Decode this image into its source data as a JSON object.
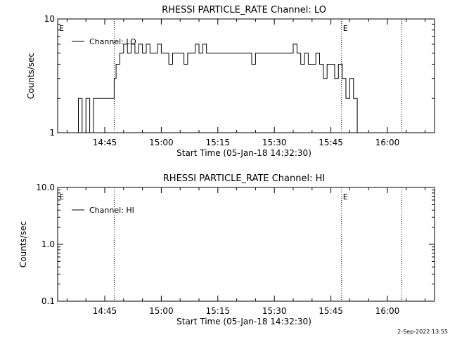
{
  "footer": {
    "date_stamp": "2-Sep-2022 13:55"
  },
  "chart_data": [
    {
      "type": "line",
      "title": "RHESSI PARTICLE_RATE Channel: LO",
      "xlabel": "Start Time (05-Jan-18 14:32:30)",
      "ylabel": "Counts/sec",
      "y_scale": "log",
      "ylim": [
        1,
        10
      ],
      "y_ticks": [
        {
          "value": 1,
          "label": "1"
        },
        {
          "value": 10,
          "label": "10"
        }
      ],
      "xlim": [
        "14:32:30",
        "16:12:30"
      ],
      "x_ticks": [
        "14:45",
        "15:00",
        "15:15",
        "15:30",
        "15:45",
        "16:00"
      ],
      "vertical_markers": [
        "14:47:30",
        "15:47:50",
        "16:03:50"
      ],
      "event_markers": [
        {
          "label": "E",
          "x": "14:32:30"
        },
        {
          "label": "E",
          "x": "15:47:50"
        }
      ],
      "grid": false,
      "legend_position": "top-left",
      "series": [
        {
          "name": "Channel: LO",
          "x": [
            "14:36:00",
            "14:37:00",
            "14:38:00",
            "14:39:00",
            "14:40:00",
            "14:41:00",
            "14:42:00",
            "14:43:00",
            "14:44:00",
            "14:45:00",
            "14:46:00",
            "14:47:00",
            "14:47:30",
            "14:48:00",
            "14:49:00",
            "14:50:00",
            "14:51:00",
            "14:52:00",
            "14:53:00",
            "14:54:00",
            "14:55:00",
            "14:56:00",
            "14:57:00",
            "14:58:00",
            "14:59:00",
            "15:00:00",
            "15:01:00",
            "15:02:00",
            "15:03:00",
            "15:04:00",
            "15:05:00",
            "15:06:00",
            "15:07:00",
            "15:08:00",
            "15:09:00",
            "15:10:00",
            "15:11:00",
            "15:12:00",
            "15:13:00",
            "15:14:00",
            "15:15:00",
            "15:16:00",
            "15:17:00",
            "15:18:00",
            "15:19:00",
            "15:20:00",
            "15:21:00",
            "15:22:00",
            "15:23:00",
            "15:24:00",
            "15:25:00",
            "15:26:00",
            "15:27:00",
            "15:28:00",
            "15:29:00",
            "15:30:00",
            "15:31:00",
            "15:32:00",
            "15:33:00",
            "15:34:00",
            "15:35:00",
            "15:36:00",
            "15:37:00",
            "15:38:00",
            "15:39:00",
            "15:40:00",
            "15:41:00",
            "15:42:00",
            "15:43:00",
            "15:44:00",
            "15:45:00",
            "15:46:00",
            "15:47:00",
            "15:48:00",
            "15:49:00",
            "15:50:00",
            "15:51:00",
            "15:52:00",
            "15:53:00"
          ],
          "values": [
            1,
            1,
            2,
            1,
            2,
            1,
            2,
            2,
            2,
            2,
            2,
            2,
            3,
            4,
            5,
            6,
            5,
            6,
            5,
            6,
            5,
            6,
            5,
            5,
            6,
            5,
            5,
            4,
            5,
            5,
            5,
            4,
            5,
            5,
            6,
            5,
            6,
            5,
            5,
            5,
            5,
            5,
            5,
            5,
            5,
            5,
            5,
            5,
            5,
            4,
            5,
            5,
            5,
            5,
            5,
            5,
            5,
            5,
            5,
            5,
            6,
            5,
            4,
            5,
            4,
            4,
            5,
            4,
            3,
            4,
            4,
            3,
            4,
            3,
            2,
            3,
            2,
            1,
            1
          ]
        }
      ]
    },
    {
      "type": "line",
      "title": "RHESSI PARTICLE_RATE Channel: HI",
      "xlabel": "Start Time (05-Jan-18 14:32:30)",
      "ylabel": "Counts/sec",
      "y_scale": "log",
      "ylim": [
        0.1,
        10
      ],
      "y_ticks": [
        {
          "value": 0.1,
          "label": "0.1"
        },
        {
          "value": 1,
          "label": "1.0"
        },
        {
          "value": 10,
          "label": "10.0"
        }
      ],
      "xlim": [
        "14:32:30",
        "16:12:30"
      ],
      "x_ticks": [
        "14:45",
        "15:00",
        "15:15",
        "15:30",
        "15:45",
        "16:00"
      ],
      "vertical_markers": [
        "14:47:30",
        "15:47:50",
        "16:03:50"
      ],
      "event_markers": [
        {
          "label": "E",
          "x": "14:32:30"
        },
        {
          "label": "E",
          "x": "15:47:50"
        }
      ],
      "grid": false,
      "legend_position": "top-left",
      "series": [
        {
          "name": "Channel: HI",
          "x": [],
          "values": []
        }
      ]
    }
  ]
}
